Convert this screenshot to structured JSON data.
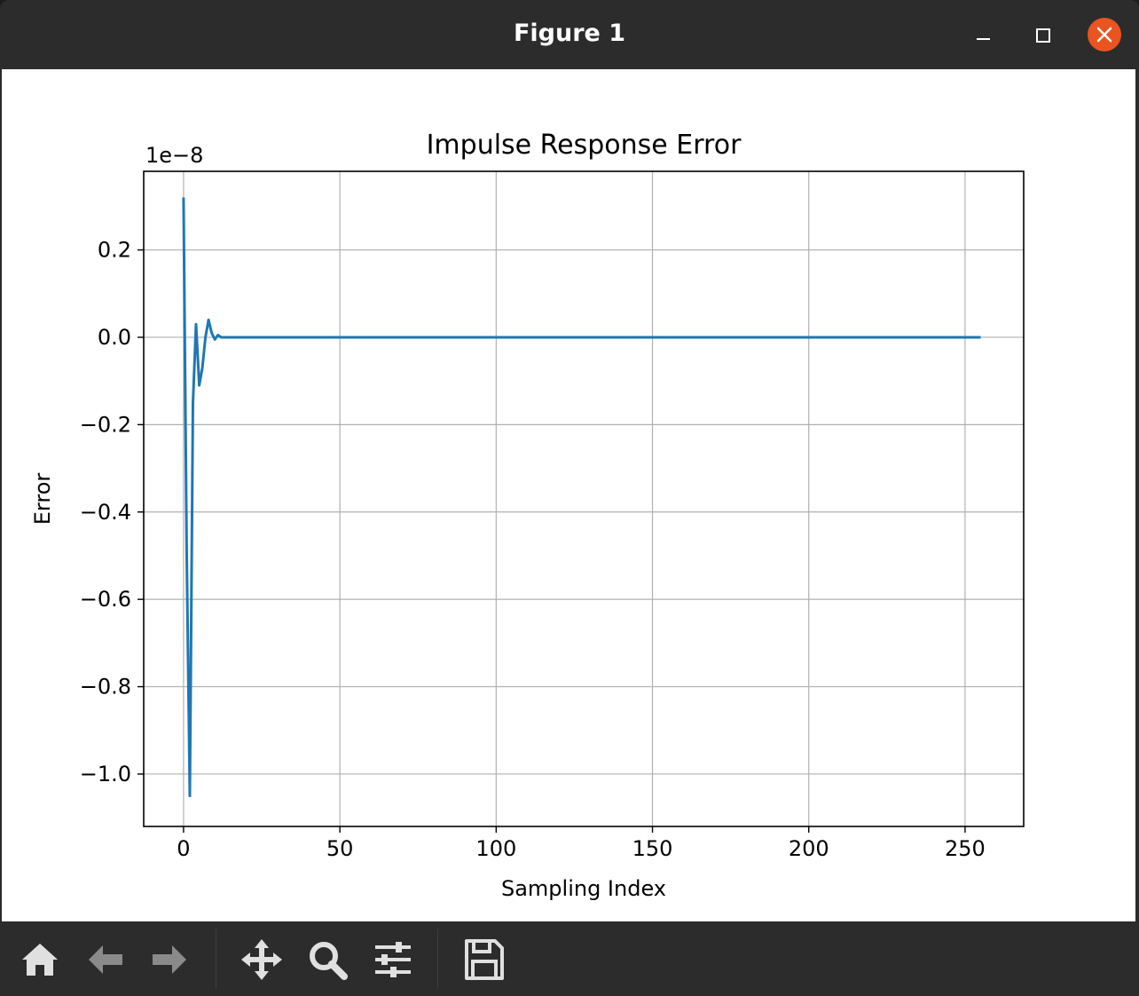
{
  "window": {
    "title": "Figure 1",
    "controls": [
      "minimize-icon",
      "maximize-icon",
      "close-icon"
    ]
  },
  "toolbar": {
    "buttons": [
      "home-icon",
      "back-icon",
      "forward-icon",
      "pan-icon",
      "zoom-icon",
      "configure-subplots-icon",
      "save-icon"
    ]
  },
  "colors": {
    "line": "#1f77b4",
    "close_button": "#e95420",
    "titlebar": "#2c2c2c"
  },
  "chart_data": {
    "type": "line",
    "title": "Impulse Response Error",
    "xlabel": "Sampling Index",
    "ylabel": "Error",
    "offset_text": "1e−8",
    "y_scale_factor": 1e-08,
    "xlim": [
      -12.75,
      268.75
    ],
    "ylim": [
      -1.12,
      0.38
    ],
    "xticks": [
      0,
      50,
      100,
      150,
      200,
      250
    ],
    "xtick_labels": [
      "0",
      "50",
      "100",
      "150",
      "200",
      "250"
    ],
    "yticks": [
      0.2,
      0.0,
      -0.2,
      -0.4,
      -0.6,
      -0.8,
      -1.0
    ],
    "ytick_labels": [
      "0.2",
      "0.0",
      "−0.2",
      "−0.4",
      "−0.6",
      "−0.8",
      "−1.0"
    ],
    "grid": true,
    "series": [
      {
        "x": [
          0,
          1,
          2,
          3,
          4,
          5,
          6,
          7,
          8,
          9,
          10,
          11,
          12,
          13,
          14,
          15,
          20,
          255
        ],
        "y": [
          0.32,
          -0.5,
          -1.05,
          -0.15,
          0.03,
          -0.11,
          -0.07,
          0.0,
          0.04,
          0.01,
          -0.005,
          0.005,
          0.0,
          0.0,
          0.0,
          0.0,
          0.0,
          0.0
        ]
      }
    ]
  }
}
